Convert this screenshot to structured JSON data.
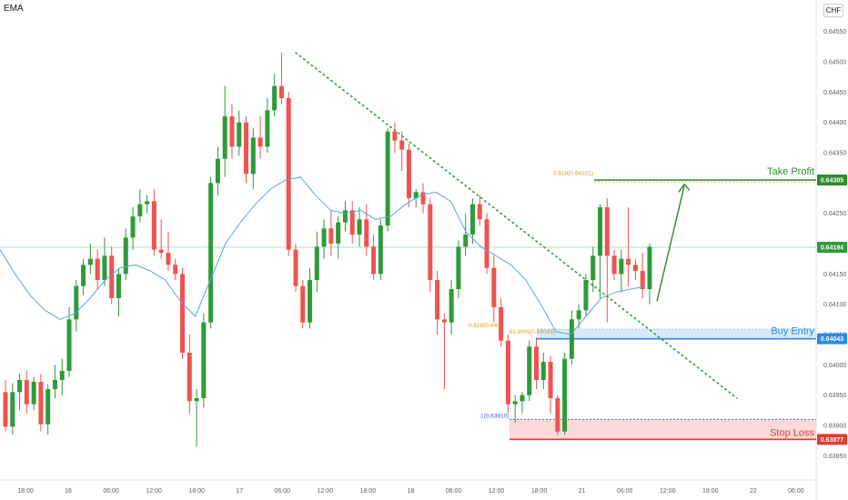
{
  "indicator_label": "EMA",
  "currency": "CHF",
  "colors": {
    "up": "#2e9a3a",
    "down": "#ef5350",
    "ema": "#5aa7e0",
    "trendline": "#2e9a3a",
    "fib": "#e0a020",
    "take_profit": "#2e8b2e",
    "buy_entry": "#2d8ae0",
    "stop_loss": "#e53935",
    "current_price": "#2e9a3a"
  },
  "chart_data": {
    "type": "candlestick",
    "title": "",
    "ylim": [
      0.6383,
      0.6458
    ],
    "y_ticks": [
      "0.64550",
      "0.64500",
      "0.64450",
      "0.64400",
      "0.64350",
      "0.64300",
      "0.64250",
      "0.64150",
      "0.64100",
      "0.64050",
      "0.64000",
      "0.63950",
      "0.63900",
      "0.63850"
    ],
    "x_ticks": [
      "18:00",
      "16",
      "06:00",
      "12:00",
      "18:00",
      "17",
      "06:00",
      "12:00",
      "18:00",
      "18",
      "06:00",
      "12:00",
      "18:00",
      "21",
      "06:00",
      "12:00",
      "18:00",
      "22",
      "06:00"
    ],
    "candles": [
      [
        0.63955,
        0.63975,
        0.6389,
        0.63898
      ],
      [
        0.63898,
        0.6397,
        0.63885,
        0.63955
      ],
      [
        0.63955,
        0.63985,
        0.63925,
        0.63975
      ],
      [
        0.63975,
        0.6399,
        0.6392,
        0.63935
      ],
      [
        0.63935,
        0.6398,
        0.63925,
        0.63972
      ],
      [
        0.63972,
        0.63985,
        0.6389,
        0.63902
      ],
      [
        0.63902,
        0.63968,
        0.63885,
        0.6396
      ],
      [
        0.6396,
        0.64,
        0.63945,
        0.63975
      ],
      [
        0.63975,
        0.6401,
        0.6395,
        0.6399
      ],
      [
        0.6399,
        0.64095,
        0.6398,
        0.64075
      ],
      [
        0.64075,
        0.6414,
        0.64055,
        0.6413
      ],
      [
        0.6413,
        0.64175,
        0.64115,
        0.64165
      ],
      [
        0.64165,
        0.642,
        0.6415,
        0.64175
      ],
      [
        0.64175,
        0.6419,
        0.64125,
        0.6414
      ],
      [
        0.6414,
        0.6421,
        0.6413,
        0.6418
      ],
      [
        0.6418,
        0.64195,
        0.641,
        0.6411
      ],
      [
        0.6411,
        0.6416,
        0.6408,
        0.6415
      ],
      [
        0.6415,
        0.64225,
        0.6414,
        0.6421
      ],
      [
        0.6421,
        0.6426,
        0.6419,
        0.64245
      ],
      [
        0.64245,
        0.6429,
        0.64235,
        0.64265
      ],
      [
        0.64265,
        0.6428,
        0.6425,
        0.6427
      ],
      [
        0.6427,
        0.6429,
        0.6418,
        0.6419
      ],
      [
        0.6419,
        0.6424,
        0.64175,
        0.64185
      ],
      [
        0.64185,
        0.6422,
        0.64155,
        0.64165
      ],
      [
        0.64165,
        0.64175,
        0.6414,
        0.6415
      ],
      [
        0.6415,
        0.6416,
        0.6401,
        0.6402
      ],
      [
        0.6402,
        0.6405,
        0.6392,
        0.6394
      ],
      [
        0.6394,
        0.6396,
        0.63865,
        0.63945
      ],
      [
        0.63945,
        0.64085,
        0.6393,
        0.6407
      ],
      [
        0.6407,
        0.6431,
        0.6406,
        0.643
      ],
      [
        0.643,
        0.6436,
        0.6428,
        0.6434
      ],
      [
        0.6434,
        0.6446,
        0.6431,
        0.6441
      ],
      [
        0.6441,
        0.6443,
        0.6434,
        0.6436
      ],
      [
        0.6436,
        0.6442,
        0.64345,
        0.644
      ],
      [
        0.644,
        0.6441,
        0.643,
        0.64315
      ],
      [
        0.64315,
        0.6439,
        0.6429,
        0.64375
      ],
      [
        0.64375,
        0.6441,
        0.6434,
        0.6436
      ],
      [
        0.6436,
        0.6444,
        0.6435,
        0.6442
      ],
      [
        0.6442,
        0.6448,
        0.6441,
        0.6446
      ],
      [
        0.6446,
        0.64515,
        0.6443,
        0.6444
      ],
      [
        0.6444,
        0.6445,
        0.6418,
        0.6419
      ],
      [
        0.6419,
        0.642,
        0.6412,
        0.6413
      ],
      [
        0.6413,
        0.6414,
        0.6406,
        0.6407
      ],
      [
        0.6407,
        0.6416,
        0.6406,
        0.6414
      ],
      [
        0.6414,
        0.6422,
        0.6412,
        0.64195
      ],
      [
        0.64195,
        0.6424,
        0.64175,
        0.64225
      ],
      [
        0.64225,
        0.64255,
        0.6418,
        0.642
      ],
      [
        0.642,
        0.64245,
        0.64175,
        0.64235
      ],
      [
        0.64235,
        0.6427,
        0.6422,
        0.64255
      ],
      [
        0.64255,
        0.6427,
        0.642,
        0.64215
      ],
      [
        0.64215,
        0.6426,
        0.64195,
        0.6424
      ],
      [
        0.6424,
        0.64265,
        0.6418,
        0.64195
      ],
      [
        0.64195,
        0.64215,
        0.6414,
        0.6415
      ],
      [
        0.6415,
        0.6424,
        0.6414,
        0.6423
      ],
      [
        0.6423,
        0.6439,
        0.6422,
        0.64385
      ],
      [
        0.64385,
        0.644,
        0.6435,
        0.6437
      ],
      [
        0.6437,
        0.64385,
        0.6432,
        0.64355
      ],
      [
        0.64355,
        0.64365,
        0.6426,
        0.64275
      ],
      [
        0.64275,
        0.6429,
        0.6426,
        0.64285
      ],
      [
        0.64285,
        0.643,
        0.6425,
        0.64265
      ],
      [
        0.64265,
        0.64275,
        0.6412,
        0.6414
      ],
      [
        0.6414,
        0.64155,
        0.6405,
        0.64075
      ],
      [
        0.64075,
        0.64085,
        0.6396,
        0.6407
      ],
      [
        0.6407,
        0.6414,
        0.6405,
        0.64125
      ],
      [
        0.64125,
        0.64205,
        0.6411,
        0.64195
      ],
      [
        0.64195,
        0.6425,
        0.6418,
        0.64215
      ],
      [
        0.64215,
        0.64275,
        0.642,
        0.64265
      ],
      [
        0.64265,
        0.6428,
        0.6423,
        0.6424
      ],
      [
        0.6424,
        0.6425,
        0.6415,
        0.6416
      ],
      [
        0.6416,
        0.6418,
        0.6407,
        0.64095
      ],
      [
        0.64095,
        0.6411,
        0.6403,
        0.6404
      ],
      [
        0.6404,
        0.6405,
        0.6392,
        0.63935
      ],
      [
        0.63935,
        0.6395,
        0.63905,
        0.6394
      ],
      [
        0.6394,
        0.63955,
        0.6392,
        0.6395
      ],
      [
        0.6395,
        0.6404,
        0.6394,
        0.6403
      ],
      [
        0.6403,
        0.64045,
        0.6396,
        0.63975
      ],
      [
        0.63975,
        0.6402,
        0.6396,
        0.64005
      ],
      [
        0.64005,
        0.64015,
        0.6392,
        0.63945
      ],
      [
        0.63945,
        0.6395,
        0.63885,
        0.6389
      ],
      [
        0.6389,
        0.6402,
        0.63885,
        0.6401
      ],
      [
        0.6401,
        0.6409,
        0.64,
        0.64075
      ],
      [
        0.64075,
        0.641,
        0.6406,
        0.6409
      ],
      [
        0.6409,
        0.6415,
        0.6408,
        0.6414
      ],
      [
        0.6414,
        0.64195,
        0.6412,
        0.6418
      ],
      [
        0.6418,
        0.64265,
        0.6411,
        0.6426
      ],
      [
        0.6426,
        0.64275,
        0.6407,
        0.6418
      ],
      [
        0.6418,
        0.6419,
        0.6414,
        0.6415
      ],
      [
        0.6415,
        0.6419,
        0.6412,
        0.64175
      ],
      [
        0.64175,
        0.6426,
        0.6413,
        0.64165
      ],
      [
        0.64165,
        0.64175,
        0.6414,
        0.64155
      ],
      [
        0.64155,
        0.64185,
        0.6411,
        0.64125
      ],
      [
        0.64125,
        0.642,
        0.641,
        0.64195
      ]
    ],
    "ema": [
      0.6419,
      0.6415,
      0.64115,
      0.6409,
      0.64075,
      0.64085,
      0.6411,
      0.6414,
      0.6416,
      0.64165,
      0.64155,
      0.6414,
      0.64105,
      0.6408,
      0.6414,
      0.642,
      0.64235,
      0.64265,
      0.6429,
      0.64305,
      0.6431,
      0.6428,
      0.64255,
      0.6425,
      0.64255,
      0.6424,
      0.64245,
      0.64265,
      0.6428,
      0.64285,
      0.6427,
      0.6422,
      0.64195,
      0.6418,
      0.64165,
      0.6414,
      0.641,
      0.64055,
      0.6405,
      0.6408,
      0.6411,
      0.6412,
      0.64125,
      0.6413
    ],
    "current_price": {
      "value": 0.64194,
      "label": "0.64194"
    },
    "annotations": {
      "take_profit": {
        "label": "Take Profit",
        "price": 0.64305,
        "price_label": "0.64305",
        "fib_label": "0.618(0.64101)"
      },
      "buy_entry": {
        "label": "Buy Entry",
        "price": 0.64043,
        "price_label": "0.64043",
        "fib_label": "0.618(0.640",
        "fib_label_2": "61.80%(0.64049)"
      },
      "stop_loss": {
        "label": "Stop Loss",
        "price": 0.63877,
        "price_label": "0.63877",
        "fib_label": "1(0.63910)",
        "fib_price": 0.6391
      }
    }
  }
}
